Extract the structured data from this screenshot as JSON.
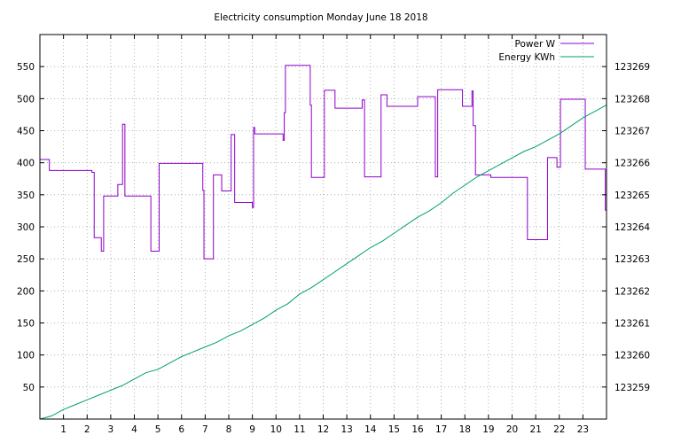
{
  "chart_data": {
    "type": "line",
    "title": "Electricity consumption Monday June 18 2018",
    "xlabel": "",
    "ylabel": "",
    "y2label": "",
    "xlim": [
      0,
      24
    ],
    "ylim": [
      0,
      600
    ],
    "y2lim": [
      123258,
      123270
    ],
    "x_ticks": [
      1,
      2,
      3,
      4,
      5,
      6,
      7,
      8,
      9,
      10,
      11,
      12,
      13,
      14,
      15,
      16,
      17,
      18,
      19,
      20,
      21,
      22,
      23
    ],
    "y_ticks": [
      50,
      100,
      150,
      200,
      250,
      300,
      350,
      400,
      450,
      500,
      550
    ],
    "y2_ticks": [
      123259,
      123260,
      123261,
      123262,
      123263,
      123264,
      123265,
      123266,
      123267,
      123268,
      123269
    ],
    "grid": true,
    "legend_position": "top-right",
    "series": [
      {
        "name": "Power W",
        "color": "#8e00c8",
        "axis": "left",
        "step": true,
        "x": [
          0,
          0.4,
          1.7,
          2.2,
          2.3,
          2.6,
          2.7,
          3.3,
          3.5,
          3.6,
          4.65,
          4.7,
          5.05,
          6.15,
          6.9,
          6.95,
          7.35,
          7.7,
          8.1,
          8.25,
          8.35,
          9.0,
          9.05,
          9.1,
          10.25,
          10.3,
          10.35,
          10.4,
          11.35,
          11.45,
          11.5,
          12.0,
          12.05,
          12.5,
          13.5,
          13.65,
          13.75,
          14.4,
          14.45,
          14.7,
          15.75,
          16.0,
          16.75,
          16.85,
          17.9,
          18.3,
          18.35,
          18.45,
          19.1,
          20.6,
          20.65,
          21.4,
          21.5,
          21.9,
          22.05,
          22.9,
          23.1,
          23.95,
          24.0
        ],
        "y": [
          405,
          388,
          388,
          385,
          283,
          262,
          348,
          366,
          460,
          348,
          348,
          262,
          399,
          399,
          357,
          250,
          381,
          356,
          444,
          338,
          338,
          330,
          455,
          445,
          445,
          435,
          478,
          552,
          552,
          490,
          377,
          377,
          513,
          485,
          485,
          498,
          378,
          378,
          506,
          488,
          488,
          503,
          378,
          514,
          488,
          512,
          458,
          381,
          377,
          377,
          280,
          280,
          408,
          393,
          499,
          499,
          390,
          326,
          460
        ]
      },
      {
        "name": "Energy KWh",
        "color": "#009e73",
        "axis": "right",
        "step": false,
        "x": [
          0,
          0.5,
          1,
          1.5,
          2,
          2.5,
          3,
          3.5,
          4,
          4.5,
          5,
          5.5,
          6,
          6.5,
          7,
          7.5,
          8,
          8.5,
          9,
          9.5,
          10,
          10.5,
          11,
          11.5,
          12,
          12.5,
          13,
          13.5,
          14,
          14.5,
          15,
          15.5,
          16,
          16.5,
          17,
          17.5,
          18,
          18.5,
          19,
          19.5,
          20,
          20.5,
          21,
          21.5,
          22,
          22.5,
          23,
          23.5,
          24
        ],
        "y": [
          123258.0,
          123258.1,
          123258.3,
          123258.45,
          123258.6,
          123258.75,
          123258.9,
          123259.05,
          123259.25,
          123259.45,
          123259.55,
          123259.75,
          123259.95,
          123260.1,
          123260.25,
          123260.4,
          123260.6,
          123260.75,
          123260.95,
          123261.15,
          123261.4,
          123261.6,
          123261.9,
          123262.1,
          123262.35,
          123262.6,
          123262.85,
          123263.1,
          123263.35,
          123263.55,
          123263.8,
          123264.05,
          123264.3,
          123264.5,
          123264.75,
          123265.05,
          123265.3,
          123265.55,
          123265.75,
          123265.95,
          123266.15,
          123266.35,
          123266.5,
          123266.7,
          123266.9,
          123267.15,
          123267.4,
          123267.6,
          123267.8
        ]
      }
    ]
  }
}
